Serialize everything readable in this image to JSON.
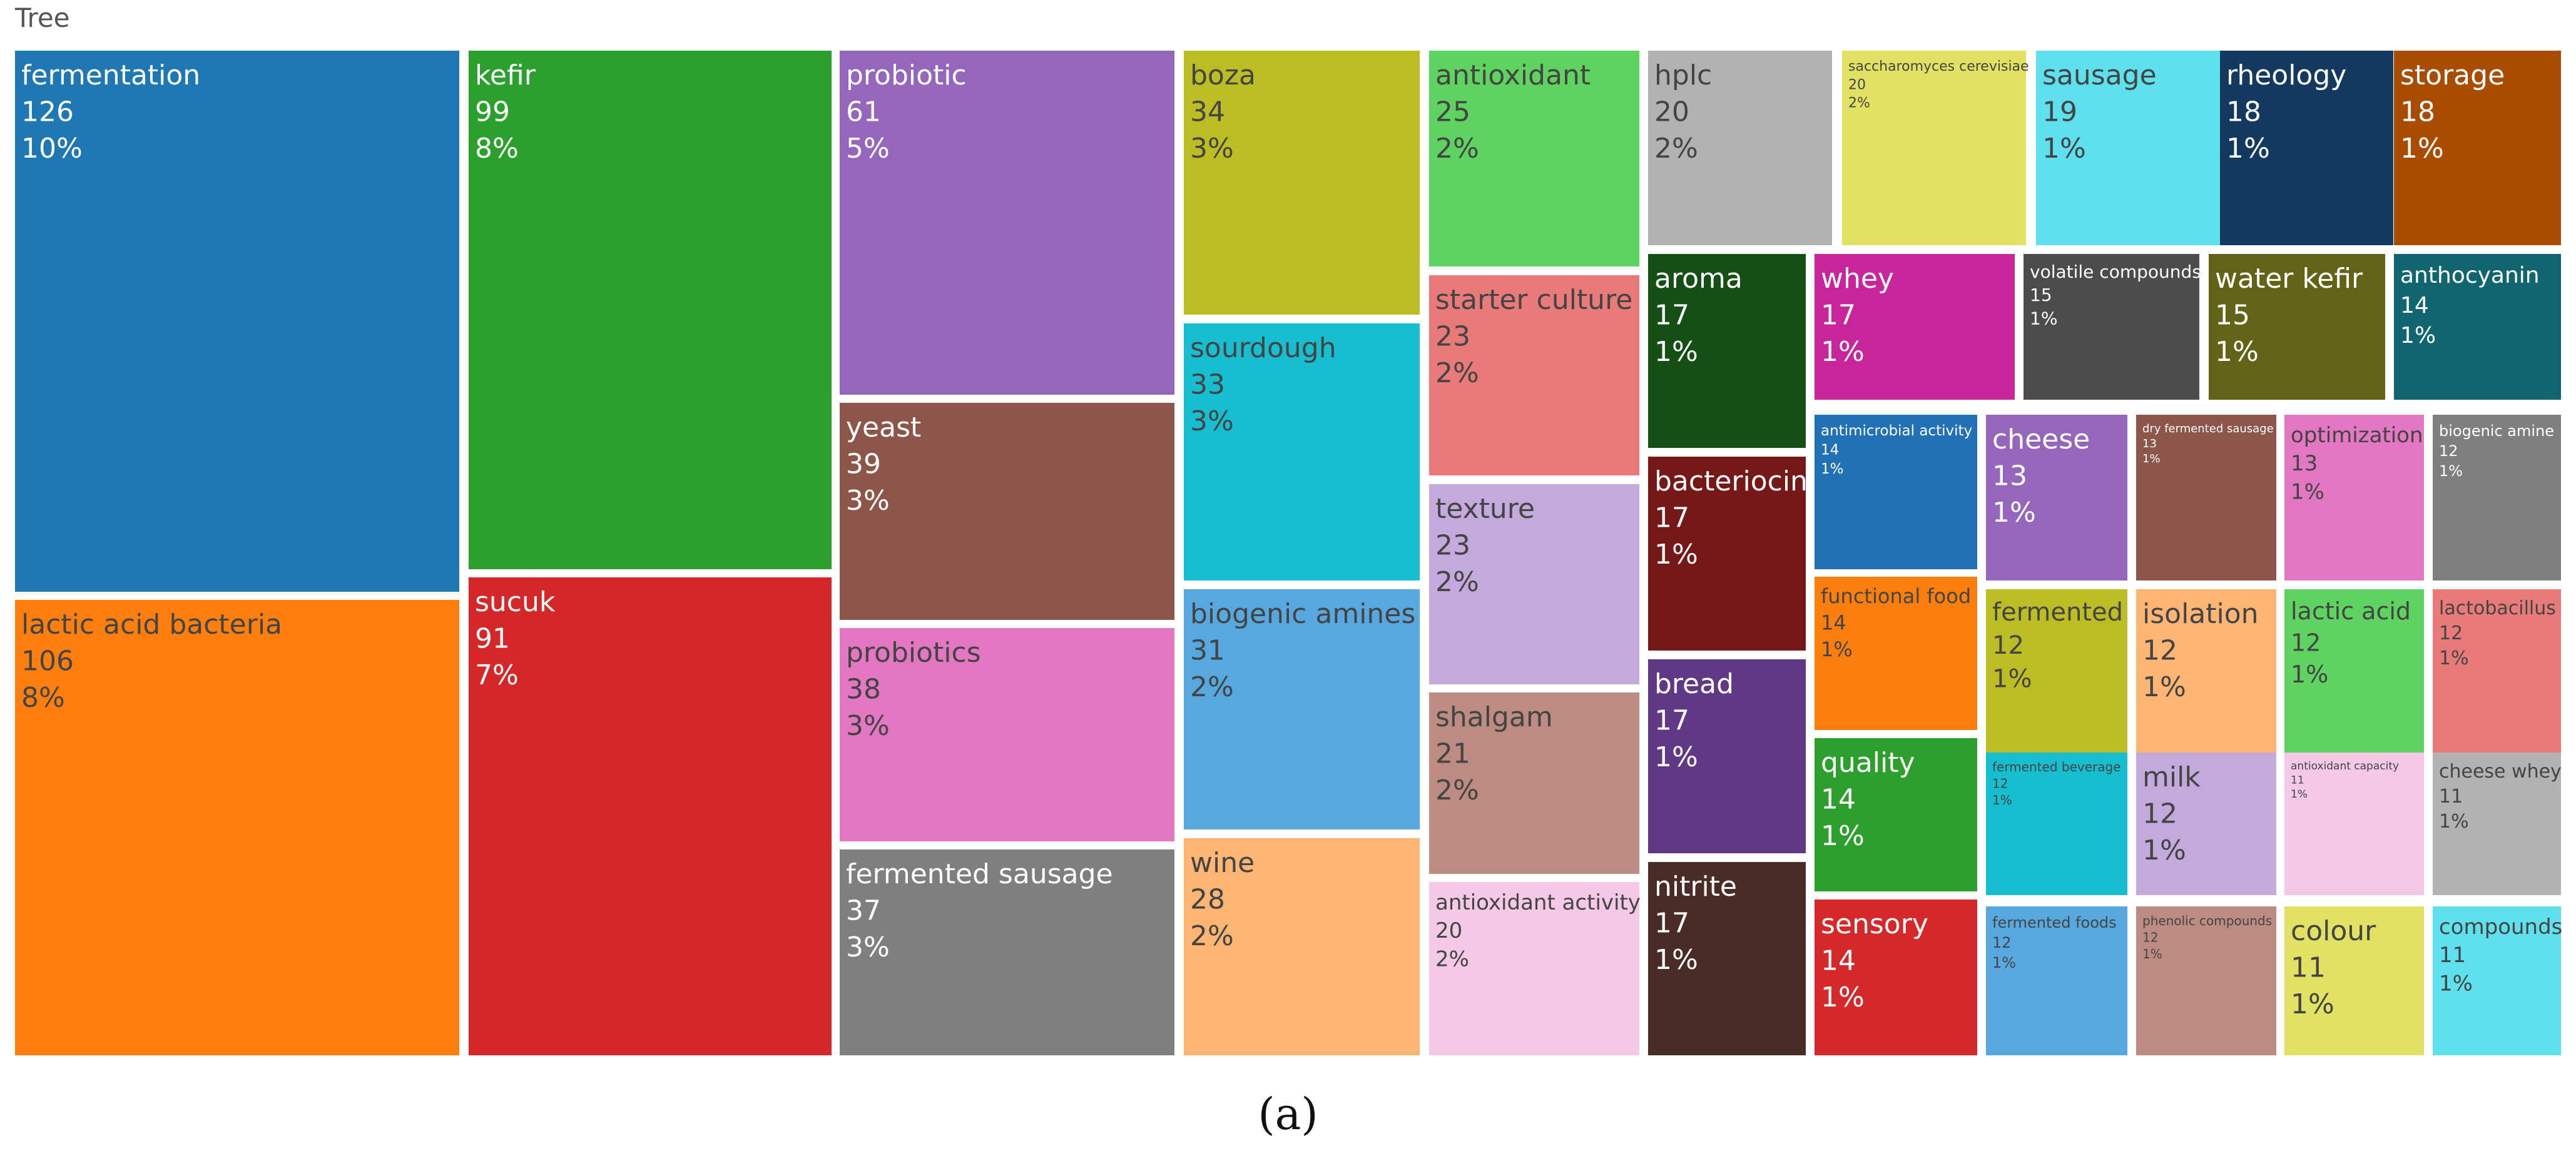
{
  "caption": "(a)",
  "chart_data": {
    "type": "treemap",
    "title": "Tree",
    "items": [
      {
        "label": "fermentation",
        "value": 126,
        "percent": "10%",
        "color": "#1f77b4",
        "text_color": "#ffffff"
      },
      {
        "label": "lactic acid bacteria",
        "value": 106,
        "percent": "8%",
        "color": "#ff7f0e",
        "text_color": "#444444"
      },
      {
        "label": "kefir",
        "value": 99,
        "percent": "8%",
        "color": "#2ca02c",
        "text_color": "#ffffff"
      },
      {
        "label": "sucuk",
        "value": 91,
        "percent": "7%",
        "color": "#d62728",
        "text_color": "#ffffff"
      },
      {
        "label": "probiotic",
        "value": 61,
        "percent": "5%",
        "color": "#9467bd",
        "text_color": "#ffffff"
      },
      {
        "label": "yeast",
        "value": 39,
        "percent": "3%",
        "color": "#8c564b",
        "text_color": "#ffffff"
      },
      {
        "label": "probiotics",
        "value": 38,
        "percent": "3%",
        "color": "#e377c2",
        "text_color": "#444444"
      },
      {
        "label": "fermented sausage",
        "value": 37,
        "percent": "3%",
        "color": "#7f7f7f",
        "text_color": "#ffffff"
      },
      {
        "label": "boza",
        "value": 34,
        "percent": "3%",
        "color": "#bcbd22",
        "text_color": "#444444"
      },
      {
        "label": "sourdough",
        "value": 33,
        "percent": "3%",
        "color": "#17becf",
        "text_color": "#444444"
      },
      {
        "label": "biogenic amines",
        "value": 31,
        "percent": "2%",
        "color": "#58a8e0",
        "text_color": "#444444"
      },
      {
        "label": "wine",
        "value": 28,
        "percent": "2%",
        "color": "#ffb574",
        "text_color": "#444444"
      },
      {
        "label": "antioxidant",
        "value": 25,
        "percent": "2%",
        "color": "#5fd35f",
        "text_color": "#444444"
      },
      {
        "label": "starter culture",
        "value": 23,
        "percent": "2%",
        "color": "#e87a7a",
        "text_color": "#444444"
      },
      {
        "label": "texture",
        "value": 23,
        "percent": "2%",
        "color": "#c4aadc",
        "text_color": "#444444"
      },
      {
        "label": "shalgam",
        "value": 21,
        "percent": "2%",
        "color": "#bc8c82",
        "text_color": "#444444"
      },
      {
        "label": "antioxidant activity",
        "value": 20,
        "percent": "2%",
        "color": "#f3c9e6",
        "text_color": "#444444"
      },
      {
        "label": "hplc",
        "value": 20,
        "percent": "2%",
        "color": "#b2b2b2",
        "text_color": "#444444"
      },
      {
        "label": "saccharomyces cerevisiae",
        "value": 20,
        "percent": "2%",
        "color": "#e1e263",
        "text_color": "#444444"
      },
      {
        "label": "sausage",
        "value": 19,
        "percent": "1%",
        "color": "#5ee1ec",
        "text_color": "#444444"
      },
      {
        "label": "rheology",
        "value": 18,
        "percent": "1%",
        "color": "#133a5e",
        "text_color": "#ffffff"
      },
      {
        "label": "storage",
        "value": 18,
        "percent": "1%",
        "color": "#a84c00",
        "text_color": "#ffffff"
      },
      {
        "label": "aroma",
        "value": 17,
        "percent": "1%",
        "color": "#164f16",
        "text_color": "#ffffff"
      },
      {
        "label": "bacteriocin",
        "value": 17,
        "percent": "1%",
        "color": "#771818",
        "text_color": "#ffffff"
      },
      {
        "label": "bread",
        "value": 17,
        "percent": "1%",
        "color": "#603984",
        "text_color": "#ffffff"
      },
      {
        "label": "nitrite",
        "value": 17,
        "percent": "1%",
        "color": "#4a2c27",
        "text_color": "#ffffff"
      },
      {
        "label": "whey",
        "value": 17,
        "percent": "1%",
        "color": "#c9259b",
        "text_color": "#ffffff"
      },
      {
        "label": "volatile compounds",
        "value": 15,
        "percent": "1%",
        "color": "#4c4c4c",
        "text_color": "#ffffff"
      },
      {
        "label": "water kefir",
        "value": 15,
        "percent": "1%",
        "color": "#636317",
        "text_color": "#ffffff"
      },
      {
        "label": "anthocyanin",
        "value": 14,
        "percent": "1%",
        "color": "#10656f",
        "text_color": "#ffffff"
      },
      {
        "label": "antimicrobial activity",
        "value": 14,
        "percent": "1%",
        "color": "#2271b4",
        "text_color": "#ffffff"
      },
      {
        "label": "functional food",
        "value": 14,
        "percent": "1%",
        "color": "#fc7f0d",
        "text_color": "#444444"
      },
      {
        "label": "quality",
        "value": 14,
        "percent": "1%",
        "color": "#2d9f2d",
        "text_color": "#ffffff"
      },
      {
        "label": "sensory",
        "value": 14,
        "percent": "1%",
        "color": "#d5282a",
        "text_color": "#ffffff"
      },
      {
        "label": "cheese",
        "value": 13,
        "percent": "1%",
        "color": "#9467bd",
        "text_color": "#ffffff"
      },
      {
        "label": "dry fermented sausage",
        "value": 13,
        "percent": "1%",
        "color": "#8c564b",
        "text_color": "#ffffff"
      },
      {
        "label": "optimization",
        "value": 13,
        "percent": "1%",
        "color": "#e377c2",
        "text_color": "#444444"
      },
      {
        "label": "biogenic amine",
        "value": 12,
        "percent": "1%",
        "color": "#7f7f7f",
        "text_color": "#ffffff"
      },
      {
        "label": "fermented",
        "value": 12,
        "percent": "1%",
        "color": "#bcbd22",
        "text_color": "#444444"
      },
      {
        "label": "isolation",
        "value": 12,
        "percent": "1%",
        "color": "#ffb574",
        "text_color": "#444444"
      },
      {
        "label": "lactic acid",
        "value": 12,
        "percent": "1%",
        "color": "#5fd35f",
        "text_color": "#444444"
      },
      {
        "label": "lactobacillus",
        "value": 12,
        "percent": "1%",
        "color": "#e87a7a",
        "text_color": "#444444"
      },
      {
        "label": "fermented beverage",
        "value": 12,
        "percent": "1%",
        "color": "#17becf",
        "text_color": "#444444"
      },
      {
        "label": "milk",
        "value": 12,
        "percent": "1%",
        "color": "#c4aadc",
        "text_color": "#444444"
      },
      {
        "label": "antioxidant capacity",
        "value": 11,
        "percent": "1%",
        "color": "#f3c9e6",
        "text_color": "#444444"
      },
      {
        "label": "cheese whey",
        "value": 11,
        "percent": "1%",
        "color": "#b2b2b2",
        "text_color": "#444444"
      },
      {
        "label": "fermented foods",
        "value": 12,
        "percent": "1%",
        "color": "#58a8e0",
        "text_color": "#444444"
      },
      {
        "label": "phenolic compounds",
        "value": 12,
        "percent": "1%",
        "color": "#bc8c82",
        "text_color": "#444444"
      },
      {
        "label": "colour",
        "value": 11,
        "percent": "1%",
        "color": "#e1e263",
        "text_color": "#444444"
      },
      {
        "label": "compounds",
        "value": 11,
        "percent": "1%",
        "color": "#5ee1ec",
        "text_color": "#444444"
      }
    ]
  }
}
